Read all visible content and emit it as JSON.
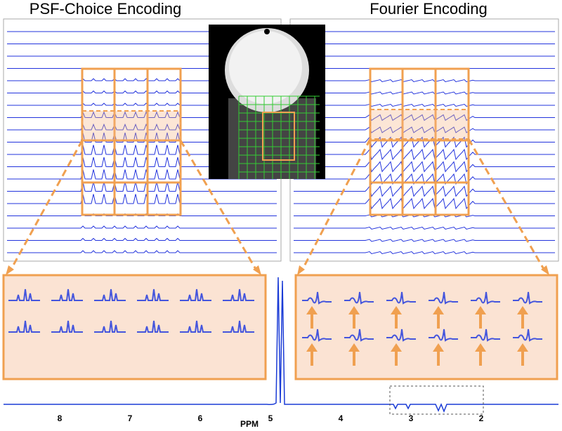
{
  "panels": [
    {
      "title": "PSF-Choice Encoding"
    },
    {
      "title": "Fourier Encoding"
    }
  ],
  "spectrum": {
    "axis_label": "PPM",
    "ticks": [
      8,
      7,
      6,
      5,
      4,
      3,
      2
    ],
    "xlim": [
      8.8,
      0.9
    ]
  }
}
